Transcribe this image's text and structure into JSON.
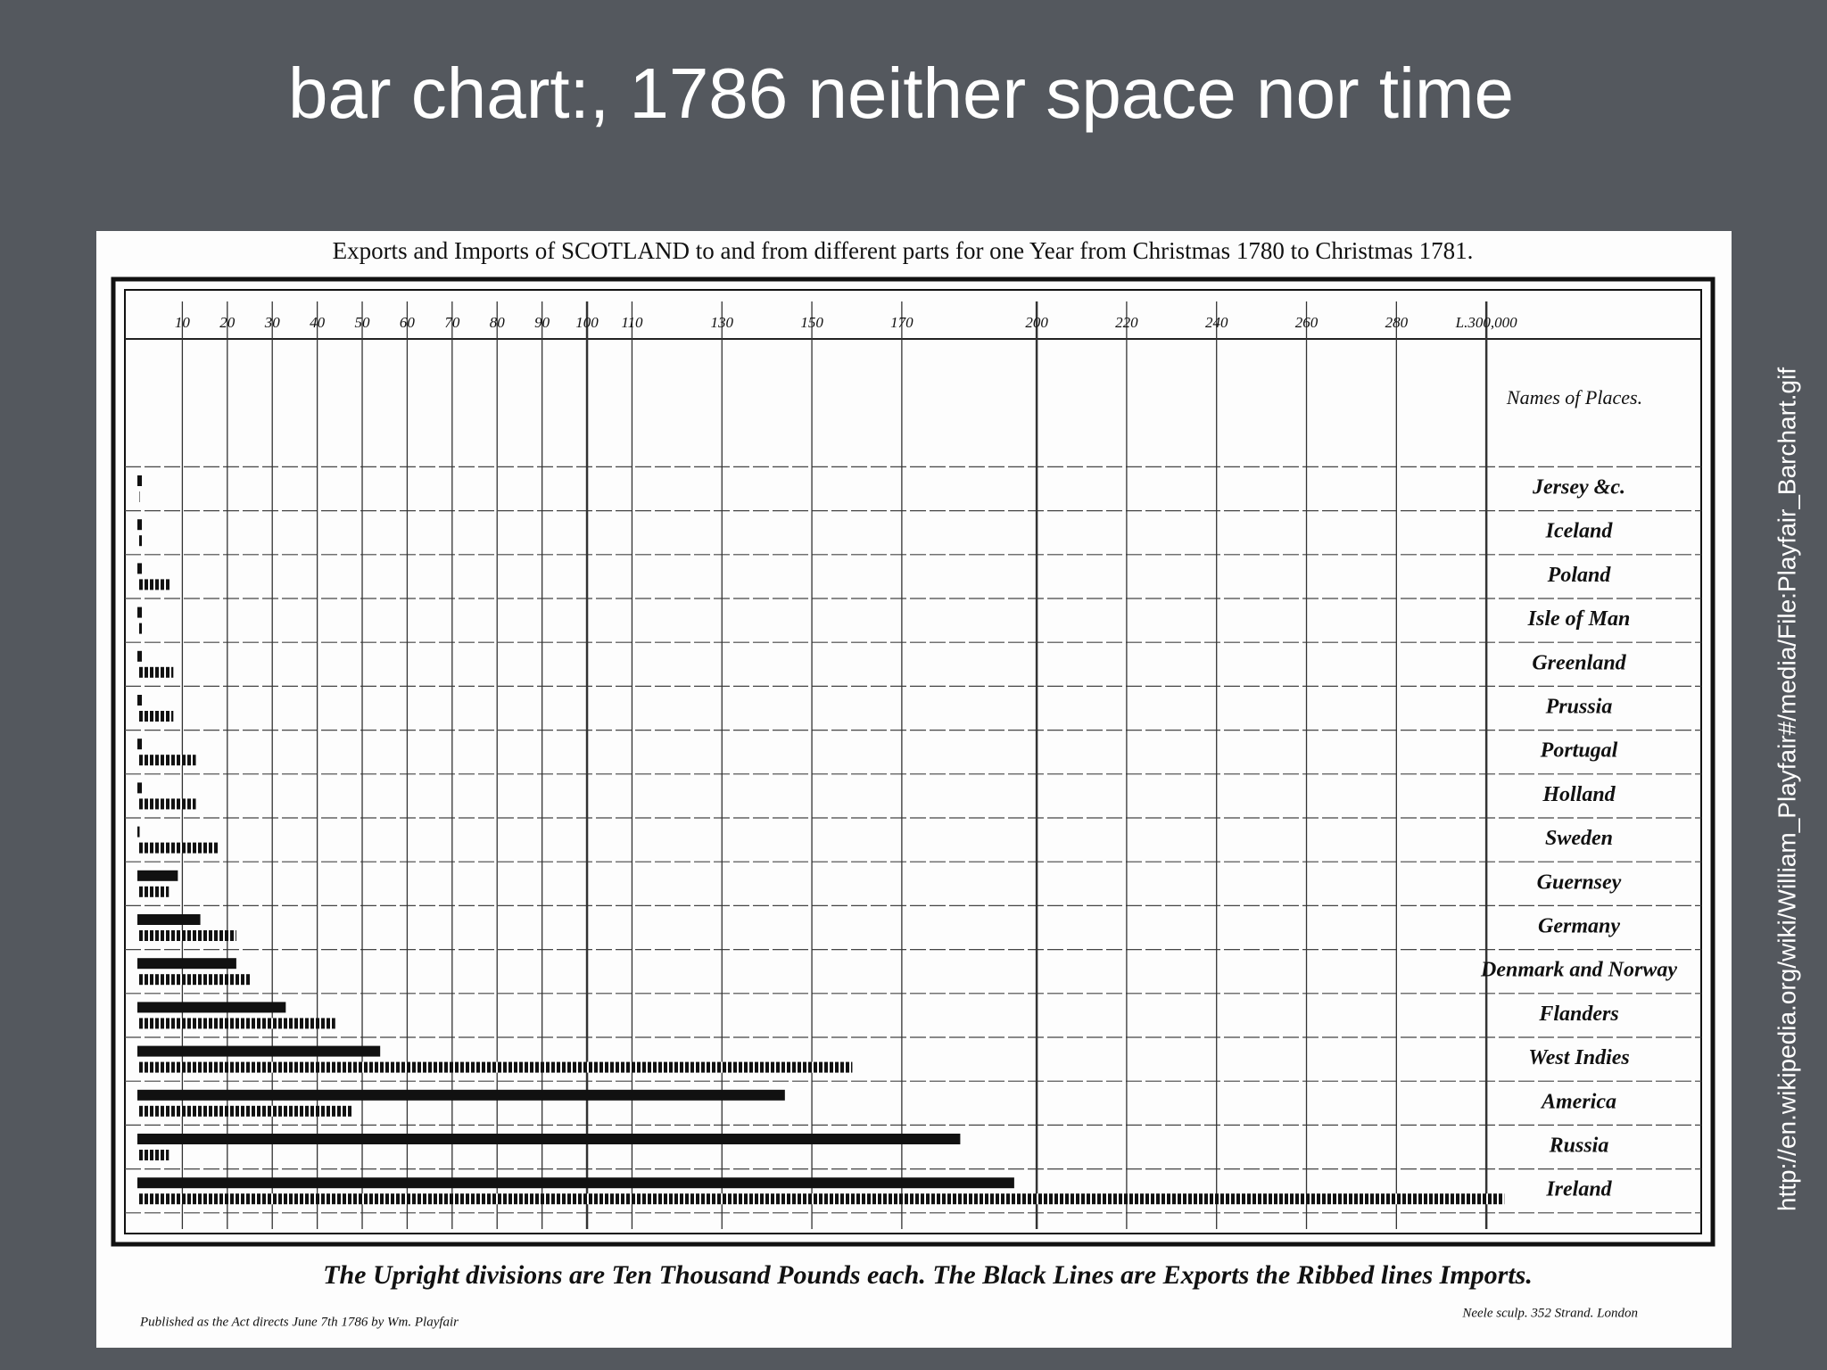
{
  "slide": {
    "title": "bar chart:, 1786 neither space nor time",
    "source": "http://en.wikipedia.org/wiki/William_Playfair#/media/File:Playfair_Barchart.gif"
  },
  "chart_data": {
    "type": "bar",
    "orientation": "horizontal",
    "title": "Exports and Imports of SCOTLAND to and from different parts for one Year from Christmas 1780 to Christmas 1781.",
    "ylabel": "Names of Places.",
    "note": "The Upright divisions are Ten Thousand Pounds each. The Black Lines are Exports the Ribbed lines Imports.",
    "imprint_left": "Published as the Act directs June 7th 1786 by Wm. Playfair",
    "imprint_right": "Neele sculp. 352 Strand. London",
    "categories": [
      "Jersey &c.",
      "Iceland",
      "Poland",
      "Isle of Man",
      "Greenland",
      "Prussia",
      "Portugal",
      "Holland",
      "Sweden",
      "Guernsey",
      "Germany",
      "Denmark and Norway",
      "Flanders",
      "West Indies",
      "America",
      "Russia",
      "Ireland"
    ],
    "series": [
      {
        "color": "#111111",
        "values": [
          1,
          1,
          1,
          1,
          1,
          1,
          1,
          1,
          0.5,
          9,
          14,
          22,
          33,
          54,
          144,
          183,
          195
        ]
      },
      {
        "color": "#111111",
        "pattern": "ribbed",
        "values": [
          0.5,
          1,
          7.5,
          1,
          8,
          8,
          13,
          13,
          18,
          7,
          22,
          25,
          44,
          159,
          48,
          7,
          304
        ]
      }
    ],
    "xlim": [
      0,
      346
    ],
    "xticks": [
      10,
      20,
      30,
      40,
      50,
      60,
      70,
      80,
      90,
      100,
      110,
      130,
      150,
      170,
      200,
      220,
      240,
      260,
      280,
      {
        "value": 300,
        "label": "L.300,000"
      }
    ],
    "grid": true
  }
}
